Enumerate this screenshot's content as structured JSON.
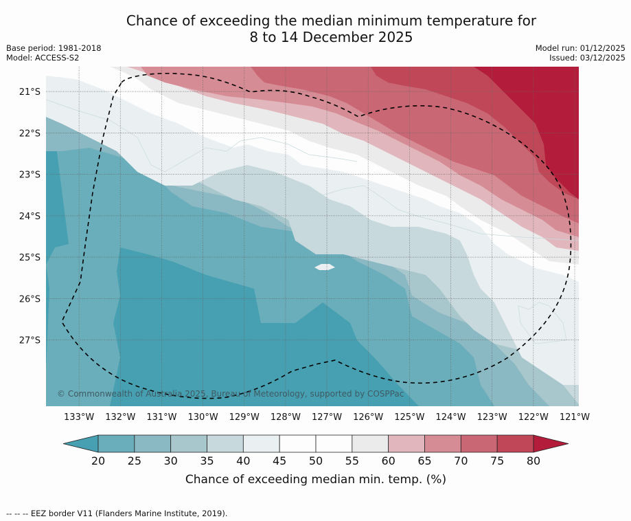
{
  "title": {
    "line1": "Chance of exceeding the median minimum temperature for",
    "line2": "8 to 14 December 2025"
  },
  "meta_left": {
    "base_period": "Base period: 1981-2018",
    "model": "Model: ACCESS-S2"
  },
  "meta_right": {
    "model_run": "Model run: 01/12/2025",
    "issued": "Issued: 03/12/2025"
  },
  "map": {
    "lat_ticks": [
      "21°S",
      "22°S",
      "23°S",
      "24°S",
      "25°S",
      "26°S",
      "27°S"
    ],
    "lon_ticks": [
      "133°W",
      "132°W",
      "131°W",
      "130°W",
      "129°W",
      "128°W",
      "127°W",
      "126°W",
      "125°W",
      "124°W",
      "123°W",
      "122°W",
      "121°W"
    ],
    "extent": {
      "lon_west": -133.8,
      "lon_east": -120.9,
      "lat_north": -20.4,
      "lat_south": -28.6
    },
    "copyright": "© Commonwealth of Australia 2025, Bureau of Meteorology, supported by COSPPac",
    "gradient_note": "Probabilities increase from southwest (<20%) to northeast (>80%)"
  },
  "colorbar": {
    "ticks": [
      "20",
      "25",
      "30",
      "35",
      "40",
      "45",
      "50",
      "55",
      "60",
      "65",
      "70",
      "75",
      "80"
    ],
    "label": "Chance of exceeding median min. temp. (%)",
    "under_color": "#47a0b1",
    "over_color": "#b31c3a",
    "bins": [
      {
        "range": "20-25",
        "color": "#69aeba"
      },
      {
        "range": "25-30",
        "color": "#8ab8c3"
      },
      {
        "range": "30-35",
        "color": "#a8c7cc"
      },
      {
        "range": "35-40",
        "color": "#c8d9dd"
      },
      {
        "range": "40-45",
        "color": "#eaf0f2"
      },
      {
        "range": "45-50",
        "color": "#fdfdfd"
      },
      {
        "range": "50-55",
        "color": "#fdfdfd"
      },
      {
        "range": "55-60",
        "color": "#ecebec"
      },
      {
        "range": "60-65",
        "color": "#e1b7bd"
      },
      {
        "range": "65-70",
        "color": "#d58c94"
      },
      {
        "range": "70-75",
        "color": "#ca6774"
      },
      {
        "range": "75-80",
        "color": "#c04757"
      }
    ]
  },
  "footer": {
    "eez_legend": "--  --  -- EEZ border V11 (Flanders Marine Institute, 2019)."
  }
}
